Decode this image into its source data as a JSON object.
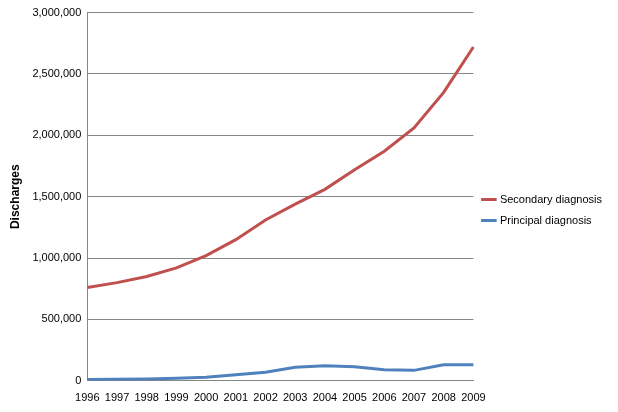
{
  "chart_data": {
    "type": "line",
    "y_label": "Discharges",
    "categories": [
      "1996",
      "1997",
      "1998",
      "1999",
      "2000",
      "2001",
      "2002",
      "2003",
      "2004",
      "2005",
      "2006",
      "2007",
      "2008",
      "2009"
    ],
    "series": [
      {
        "name": "Secondary diagnosis",
        "color": "#c0504d",
        "values": [
          760000,
          800000,
          850000,
          920000,
          1020000,
          1150000,
          1310000,
          1440000,
          1560000,
          1720000,
          1870000,
          2060000,
          2350000,
          2720000
        ]
      },
      {
        "name": "Principal diagnosis",
        "color": "#4f81bd",
        "values": [
          10000,
          12000,
          15000,
          20000,
          28000,
          50000,
          70000,
          110000,
          122000,
          115000,
          90000,
          85000,
          130000,
          130000
        ]
      }
    ],
    "ylim": [
      0,
      3000000
    ],
    "yticks": [
      0,
      {
        "value": 500000,
        "label": "500,000"
      },
      {
        "value": 1000000,
        "label": "1,000,000"
      },
      {
        "value": 1500000,
        "label": "1,500,000"
      },
      {
        "value": 2000000,
        "label": "2,000,000"
      },
      {
        "value": 2500000,
        "label": "2,500,000"
      },
      {
        "value": 3000000,
        "label": "3,000,000"
      }
    ],
    "grid": true,
    "legend": "right"
  }
}
